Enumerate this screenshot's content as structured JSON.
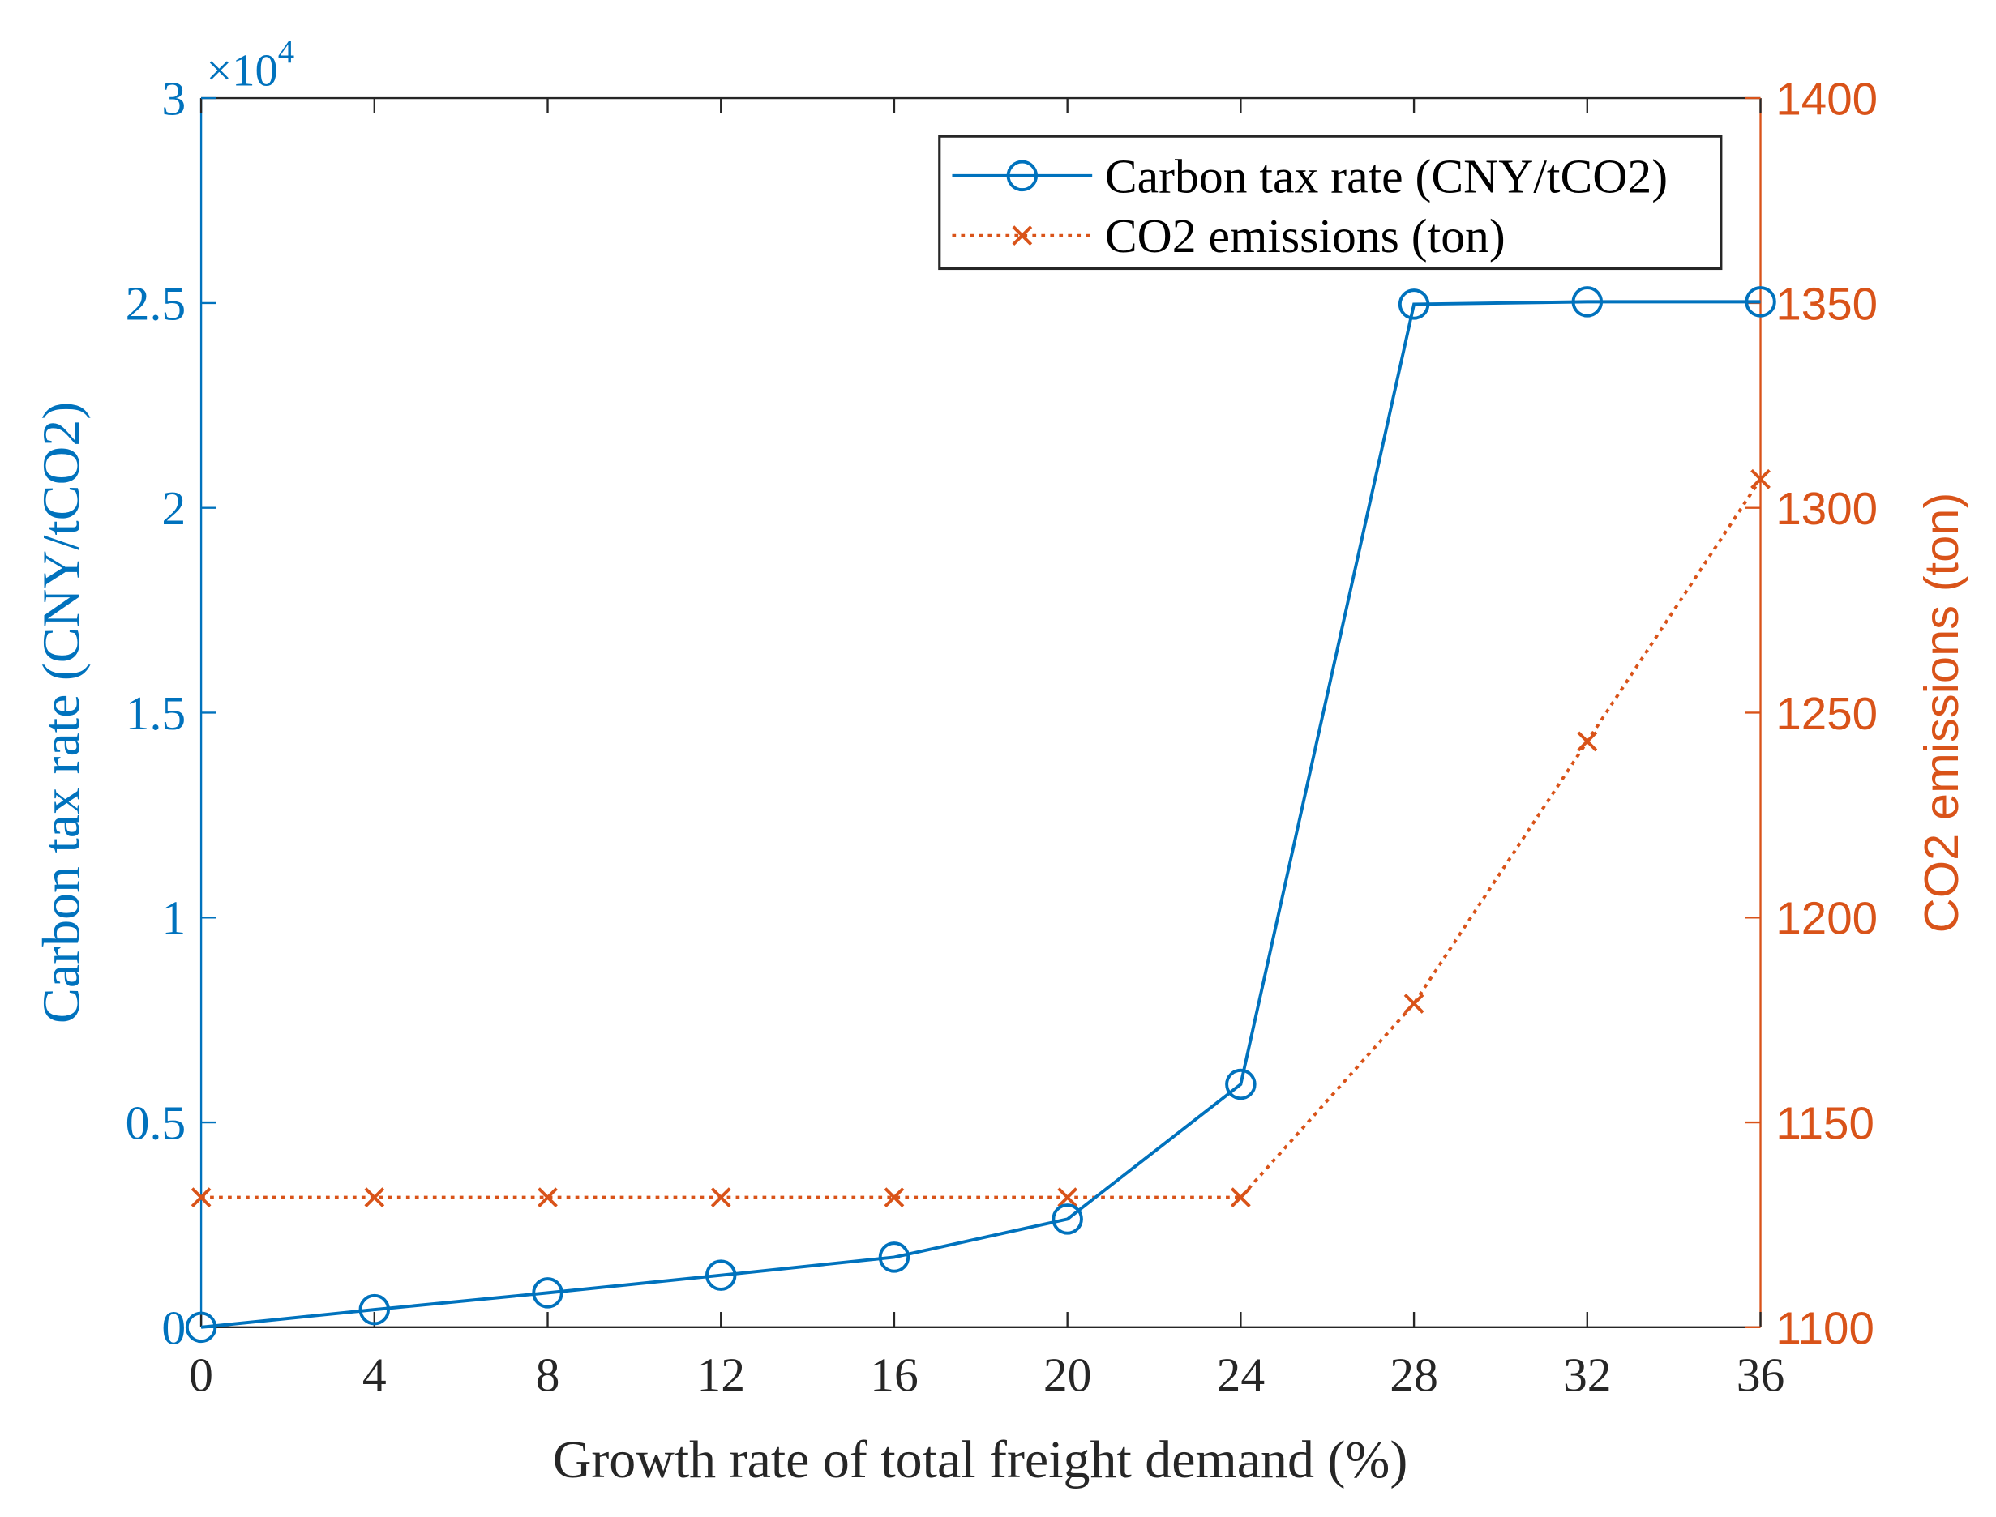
{
  "chart_data": {
    "type": "line",
    "title": "",
    "xlabel": "Growth rate of total freight demand (%)",
    "ylabel_left": "Carbon tax rate (CNY/tCO2)",
    "ylabel_right": "CO2 emissions (ton)",
    "x": [
      0,
      4,
      8,
      12,
      16,
      20,
      24,
      28,
      32,
      36
    ],
    "xlim": [
      0,
      36
    ],
    "x_ticks": [
      "0",
      "4",
      "8",
      "12",
      "16",
      "20",
      "24",
      "28",
      "32",
      "36"
    ],
    "ylim_left": [
      0,
      30000
    ],
    "y_left_ticks": [
      "0",
      "0.5",
      "1",
      "1.5",
      "2",
      "2.5",
      "3"
    ],
    "y_left_multiplier": "×10",
    "y_left_exponent": "4",
    "ylim_right": [
      1100,
      1400
    ],
    "y_right_ticks": [
      "1100",
      "1150",
      "1200",
      "1250",
      "1300",
      "1350",
      "1400"
    ],
    "grid": false,
    "legend_position": "top-right",
    "series": [
      {
        "name": "Carbon tax rate (CNY/tCO2)",
        "axis": "left",
        "color": "#0072BD",
        "marker": "circle",
        "line": "solid",
        "values": [
          0,
          430,
          840,
          1270,
          1710,
          2640,
          5930,
          24970,
          25030,
          25030
        ]
      },
      {
        "name": "CO2 emissions (ton)",
        "axis": "right",
        "color": "#D95319",
        "marker": "x",
        "line": "dotted",
        "values": [
          1131.7,
          1131.7,
          1131.7,
          1131.7,
          1131.7,
          1131.7,
          1131.7,
          1179,
          1243,
          1307
        ]
      }
    ]
  }
}
